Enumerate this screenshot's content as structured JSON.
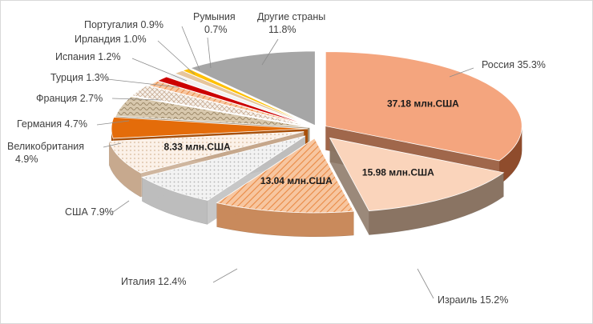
{
  "chart_data": {
    "type": "pie",
    "title": "",
    "series": [
      {
        "name": "",
        "slices": [
          {
            "label": "Россия",
            "percent": "35.3%",
            "value": 35.3,
            "amount": "37.18 млн.США",
            "color": "#f4a57e",
            "side": "#8f4c2c",
            "pattern": "solid"
          },
          {
            "label": "Израиль",
            "percent": "15.2%",
            "value": 15.2,
            "amount": "15.98 млн.США",
            "color": "#fad4bb",
            "side": "#8a7463",
            "pattern": "solid"
          },
          {
            "label": "Италия",
            "percent": "12.4%",
            "value": 12.4,
            "amount": "13.04 млн.США",
            "color": "#f7c6a0",
            "side": "#c98a5c",
            "pattern": "diag"
          },
          {
            "label": "США",
            "percent": "7.9%",
            "value": 7.9,
            "amount": "",
            "color": "#eaeaea",
            "side": "#bdbdbd",
            "pattern": "dots"
          },
          {
            "label": "",
            "percent": "",
            "value": 7.9,
            "amount": "8.33 млн.США",
            "color": "#f8e6d6",
            "side": "#c7a98e",
            "pattern": "dots2"
          },
          {
            "label": "Великобритания",
            "percent": "4.9%",
            "value": 4.9,
            "amount": "",
            "color": "#e46c0a",
            "side": "#a84f07",
            "pattern": "solid"
          },
          {
            "label": "Германия",
            "percent": "4.7%",
            "value": 4.7,
            "amount": "",
            "color": "#c9b79a",
            "side": "#8f7e62",
            "pattern": "wave"
          },
          {
            "label": "Франция",
            "percent": "2.7%",
            "value": 2.7,
            "amount": "",
            "color": "#f3ece6",
            "side": "#b09a88",
            "pattern": "cross"
          },
          {
            "label": "Турция",
            "percent": "1.3%",
            "value": 1.3,
            "amount": "",
            "color": "#e07a3a",
            "side": "#9e4e1d",
            "pattern": "diag"
          },
          {
            "label": "Испания",
            "percent": "1.2%",
            "value": 1.2,
            "amount": "",
            "color": "#cc0000",
            "side": "#800000",
            "pattern": "solid"
          },
          {
            "label": "Ирландия",
            "percent": "1.0%",
            "value": 1.0,
            "amount": "",
            "color": "#f2f2f2",
            "side": "#a6a6a6",
            "pattern": "solid"
          },
          {
            "label": "Португалия",
            "percent": "0.9%",
            "value": 0.9,
            "amount": "",
            "color": "#e6c59c",
            "side": "#a7845c",
            "pattern": "solid"
          },
          {
            "label": "Румыния",
            "percent": "0.7%",
            "value": 0.7,
            "amount": "",
            "color": "#ffc000",
            "side": "#b38600",
            "pattern": "solid"
          },
          {
            "label": "Другие страны",
            "percent": "11.8%",
            "value": 11.8,
            "amount": "",
            "color": "#a6a6a6",
            "side": "#6e6e6e",
            "pattern": "solid"
          }
        ]
      }
    ],
    "legend": "none",
    "grid": false
  }
}
